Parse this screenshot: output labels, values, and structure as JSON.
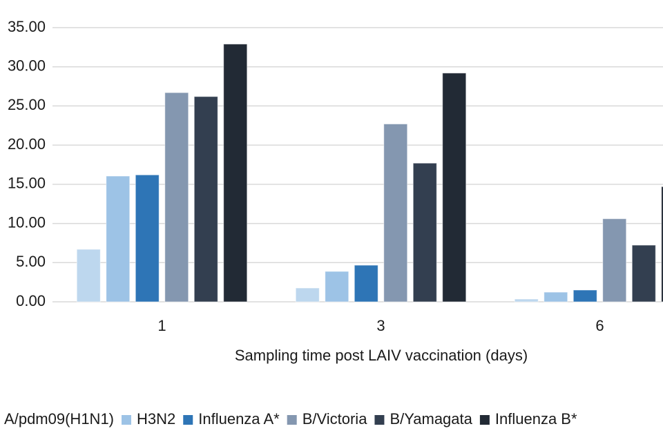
{
  "chart_data": {
    "type": "bar",
    "x_label": "Sampling time post LAIV vaccination (days)",
    "categories": [
      "1",
      "3",
      "6"
    ],
    "series": [
      {
        "name": "A/pdm09(H1N1)",
        "color": "#bdd7ee",
        "values": [
          6.7,
          1.76,
          0.35
        ]
      },
      {
        "name": "H3N2",
        "color": "#9dc3e6",
        "values": [
          16.05,
          3.88,
          1.23
        ]
      },
      {
        "name": "Influenza A*",
        "color": "#2e75b6",
        "values": [
          16.2,
          4.67,
          1.5
        ]
      },
      {
        "name": "B/Victoria",
        "color": "#8497b0",
        "values": [
          26.7,
          22.7,
          10.6
        ]
      },
      {
        "name": "B/Yamagata",
        "color": "#333f50",
        "values": [
          26.2,
          17.7,
          7.23
        ]
      },
      {
        "name": "Influenza B*",
        "color": "#222a35",
        "values": [
          32.9,
          29.2,
          14.7
        ]
      }
    ],
    "ylim": [
      0,
      35
    ],
    "yticks": [
      {
        "value": 0,
        "label": "0.00"
      },
      {
        "value": 5,
        "label": "5.00"
      },
      {
        "value": 10,
        "label": "10.00"
      },
      {
        "value": 15,
        "label": "15.00"
      },
      {
        "value": 20,
        "label": "20.00"
      },
      {
        "value": 25,
        "label": "25.00"
      },
      {
        "value": 30,
        "label": "30.00"
      },
      {
        "value": 35,
        "label": "35.00"
      }
    ],
    "grid": true,
    "legend": "bottom"
  }
}
